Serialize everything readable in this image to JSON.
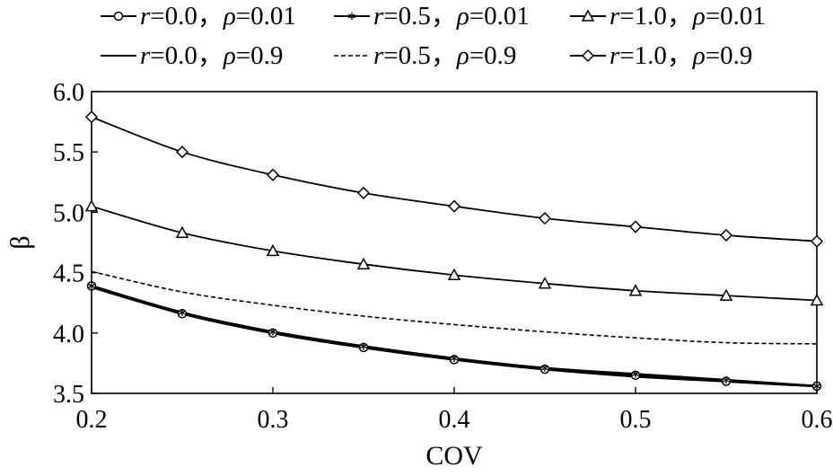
{
  "chart_data": {
    "type": "line",
    "xlabel": "COV",
    "ylabel": "β",
    "xlim": [
      0.2,
      0.6
    ],
    "ylim": [
      3.5,
      6.0
    ],
    "x_ticks": [
      "0.2",
      "0.3",
      "0.4",
      "0.5",
      "0.6"
    ],
    "y_ticks": [
      "3.5",
      "4.0",
      "4.5",
      "5.0",
      "5.5",
      "6.0"
    ],
    "grid": false,
    "legend_position": "top",
    "x": [
      0.2,
      0.25,
      0.3,
      0.35,
      0.4,
      0.45,
      0.5,
      0.55,
      0.6
    ],
    "series": [
      {
        "name": "r=0.0，ρ=0.01",
        "r": "0.0",
        "rho": "0.01",
        "marker": "circle",
        "dash": "solid",
        "values": [
          4.39,
          4.16,
          4.0,
          3.88,
          3.78,
          3.7,
          3.65,
          3.6,
          3.56
        ]
      },
      {
        "name": "r=0.5，ρ=0.01",
        "r": "0.5",
        "rho": "0.01",
        "marker": "star",
        "dash": "solid",
        "values": [
          4.39,
          4.17,
          4.01,
          3.89,
          3.79,
          3.71,
          3.66,
          3.61,
          3.56
        ]
      },
      {
        "name": "r=1.0，ρ=0.01",
        "r": "1.0",
        "rho": "0.01",
        "marker": "triangle",
        "dash": "solid",
        "values": [
          5.05,
          4.83,
          4.68,
          4.57,
          4.48,
          4.41,
          4.35,
          4.31,
          4.27
        ]
      },
      {
        "name": "r=0.0，ρ=0.9",
        "r": "0.0",
        "rho": "0.9",
        "marker": "none",
        "dash": "solid",
        "values": [
          4.38,
          4.16,
          4.0,
          3.88,
          3.78,
          3.7,
          3.64,
          3.6,
          3.56
        ]
      },
      {
        "name": "r=0.5，ρ=0.9",
        "r": "0.5",
        "rho": "0.9",
        "marker": "none",
        "dash": "dashed",
        "values": [
          4.51,
          4.34,
          4.23,
          4.14,
          4.07,
          4.01,
          3.96,
          3.92,
          3.91
        ]
      },
      {
        "name": "r=1.0，ρ=0.9",
        "r": "1.0",
        "rho": "0.9",
        "marker": "diamond",
        "dash": "solid",
        "values": [
          5.79,
          5.5,
          5.31,
          5.16,
          5.05,
          4.95,
          4.88,
          4.81,
          4.76
        ]
      }
    ]
  }
}
